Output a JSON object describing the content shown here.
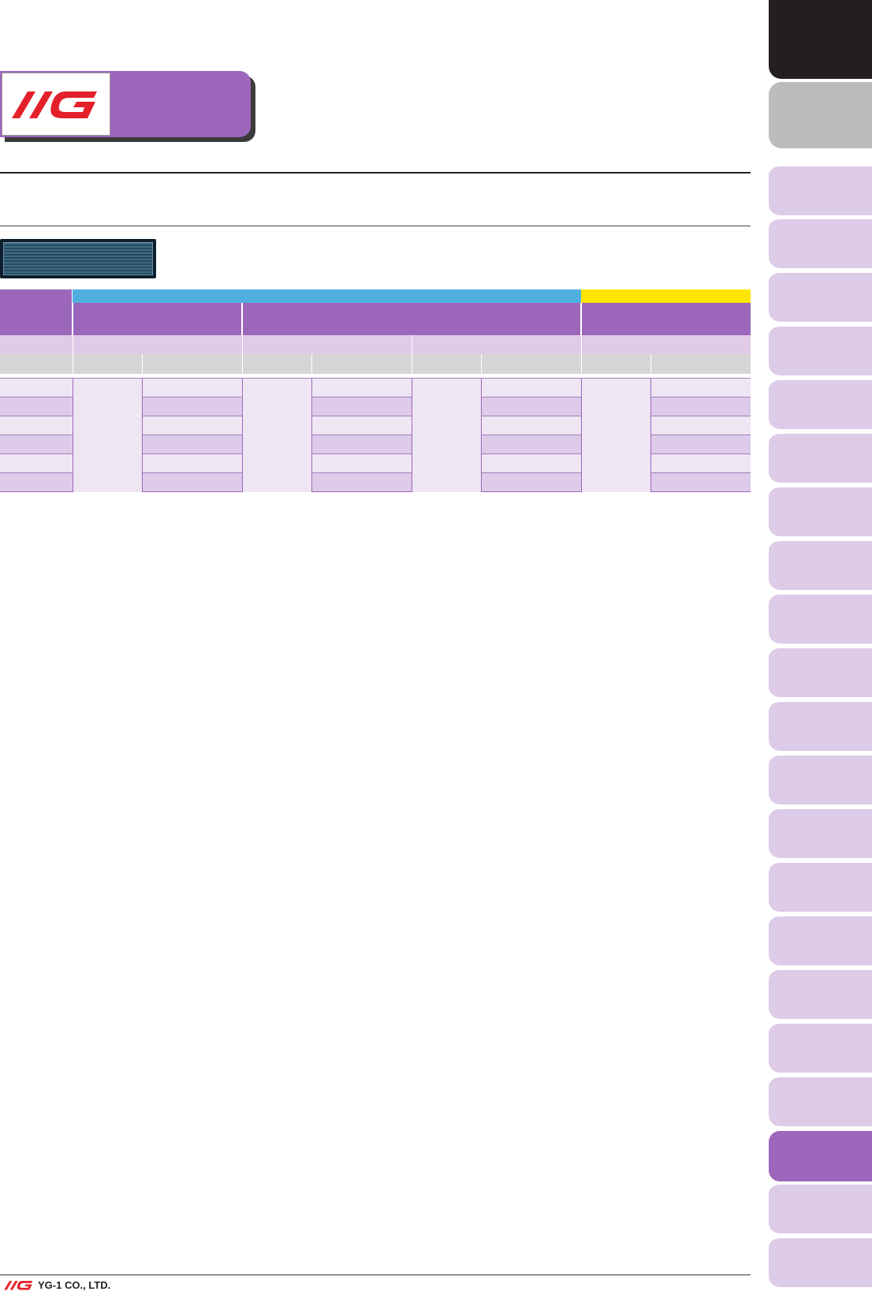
{
  "brand": {
    "logo_text": "YG",
    "logo_color": "#e4202a",
    "accent": "#9c66ba",
    "title": ""
  },
  "page": {
    "heading": ""
  },
  "section": {
    "label": ""
  },
  "table": {
    "bands": {
      "blue": "",
      "yellow": ""
    },
    "corner": "",
    "subheaders": [
      "",
      "",
      ""
    ],
    "units": [
      "",
      "",
      "",
      "",
      ""
    ],
    "columns": [
      "",
      "",
      "",
      "",
      "",
      "",
      "",
      "",
      "",
      ""
    ],
    "row_count": 6
  },
  "tabs": {
    "count_lavender": 18,
    "active_index": 18,
    "labels": []
  },
  "footer": {
    "company": "YG-1 CO., LTD."
  },
  "colors": {
    "purple": "#9c66ba",
    "lavender": "#ddcbe8",
    "light_lavender": "#efe6f4",
    "blue": "#4fb0e0",
    "yellow": "#ffe600",
    "black_tab": "#231f20",
    "grey_tab": "#bcbcbc"
  }
}
